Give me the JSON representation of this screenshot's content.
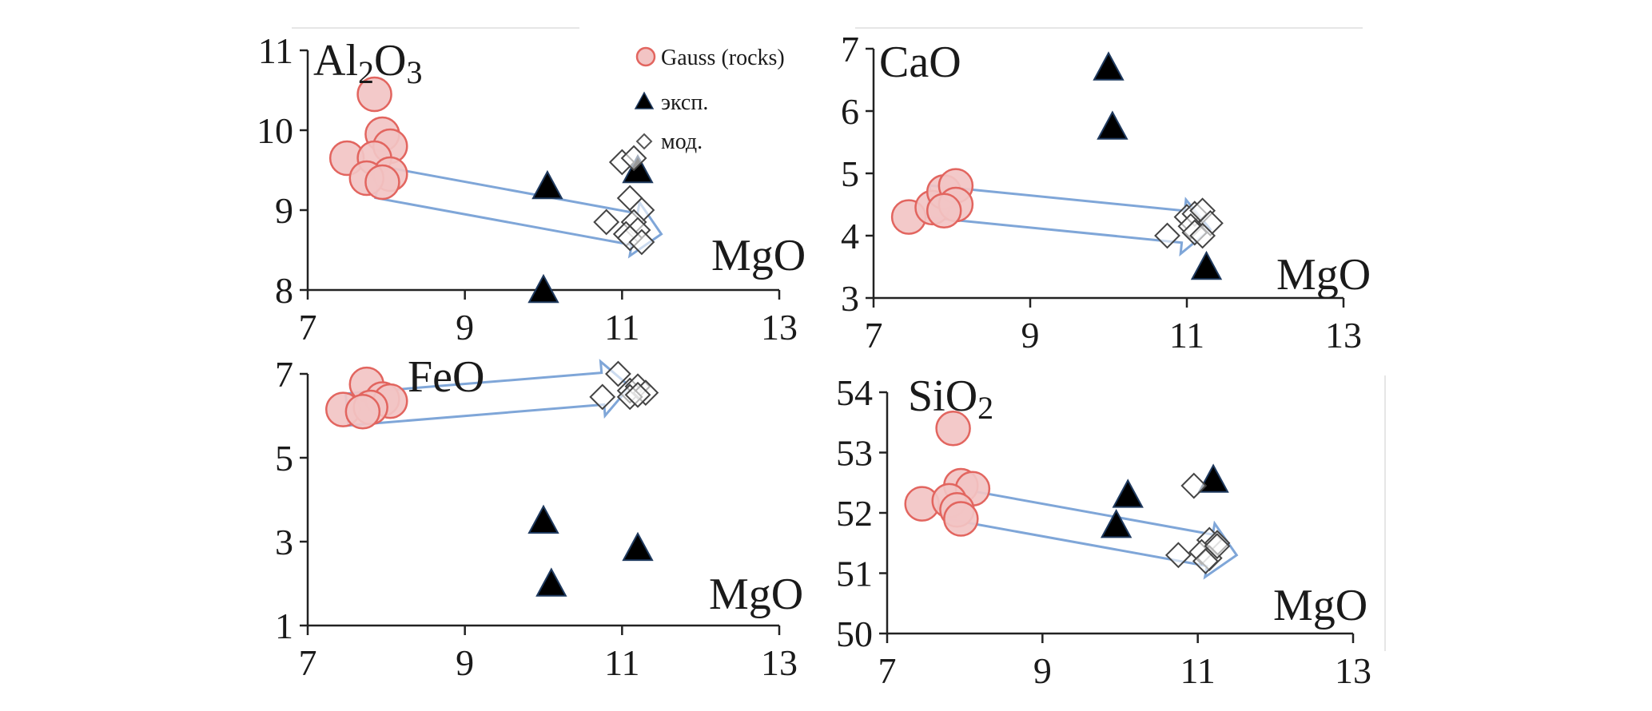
{
  "chart_data": [
    {
      "type": "scatter",
      "element": "Al",
      "ylabel_main": "Al",
      "ylabel_sub1": "2",
      "ylabel_mid": "O",
      "ylabel_sub2": "3",
      "xlabel": "MgO",
      "xlim": [
        7,
        13
      ],
      "ylim": [
        8,
        11
      ],
      "xticks": [
        "7",
        "9",
        "11",
        "13"
      ],
      "yticks": [
        "8",
        "9",
        "10",
        "11"
      ],
      "arrow": {
        "from": [
          7.9,
          9.35
        ],
        "to": [
          11.5,
          8.7
        ]
      },
      "series": [
        {
          "name": "Gauss (rocks)",
          "marker": "circle",
          "points": [
            [
              7.5,
              9.65
            ],
            [
              7.85,
              10.45
            ],
            [
              7.95,
              9.95
            ],
            [
              8.05,
              9.8
            ],
            [
              7.85,
              9.65
            ],
            [
              8.05,
              9.45
            ],
            [
              7.75,
              9.4
            ],
            [
              7.95,
              9.35
            ]
          ]
        },
        {
          "name": "эксп.",
          "marker": "triangle",
          "points": [
            [
              10.05,
              9.3
            ],
            [
              11.2,
              9.5
            ],
            [
              10.0,
              8.0
            ]
          ]
        },
        {
          "name": "мод.",
          "marker": "diamond",
          "points": [
            [
              10.8,
              8.85
            ],
            [
              11.0,
              9.6
            ],
            [
              11.15,
              9.65
            ],
            [
              11.1,
              9.15
            ],
            [
              11.25,
              9.0
            ],
            [
              11.15,
              8.85
            ],
            [
              11.2,
              8.75
            ],
            [
              11.05,
              8.7
            ],
            [
              11.1,
              8.65
            ],
            [
              11.25,
              8.6
            ]
          ]
        }
      ],
      "legend": {
        "items": [
          "Gauss (rocks)",
          "эксп.",
          "мод."
        ]
      }
    },
    {
      "type": "scatter",
      "ylabel_main": "CaO",
      "xlabel": "MgO",
      "xlim": [
        7,
        13
      ],
      "ylim": [
        3,
        7
      ],
      "xticks": [
        "7",
        "9",
        "11",
        "13"
      ],
      "yticks": [
        "3",
        "4",
        "5",
        "6",
        "7"
      ],
      "arrow": {
        "from": [
          7.7,
          4.55
        ],
        "to": [
          11.3,
          4.1
        ]
      },
      "series": [
        {
          "name": "Gauss (rocks)",
          "marker": "circle",
          "points": [
            [
              7.45,
              4.3
            ],
            [
              7.75,
              4.45
            ],
            [
              7.9,
              4.7
            ],
            [
              8.05,
              4.8
            ],
            [
              8.05,
              4.5
            ],
            [
              7.9,
              4.4
            ]
          ]
        },
        {
          "name": "эксп.",
          "marker": "triangle",
          "points": [
            [
              10.0,
              6.7
            ],
            [
              10.05,
              5.75
            ],
            [
              11.25,
              3.5
            ]
          ]
        },
        {
          "name": "мод.",
          "marker": "diamond",
          "points": [
            [
              10.75,
              4.0
            ],
            [
              11.0,
              4.3
            ],
            [
              11.1,
              4.35
            ],
            [
              11.2,
              4.4
            ],
            [
              11.3,
              4.2
            ],
            [
              11.05,
              4.15
            ],
            [
              11.1,
              4.05
            ],
            [
              11.2,
              4.0
            ]
          ]
        }
      ]
    },
    {
      "type": "scatter",
      "ylabel_main": "FeO",
      "xlabel": "MgO",
      "xlim": [
        7,
        13
      ],
      "ylim": [
        1,
        7
      ],
      "xticks": [
        "7",
        "9",
        "11",
        "13"
      ],
      "yticks": [
        "1",
        "3",
        "5",
        "7"
      ],
      "arrow": {
        "from": [
          7.5,
          6.15
        ],
        "to": [
          11.1,
          6.7
        ]
      },
      "series": [
        {
          "name": "Gauss (rocks)",
          "marker": "circle",
          "points": [
            [
              7.45,
              6.15
            ],
            [
              7.75,
              6.75
            ],
            [
              7.95,
              6.4
            ],
            [
              8.05,
              6.35
            ],
            [
              7.8,
              6.2
            ],
            [
              7.7,
              6.1
            ]
          ]
        },
        {
          "name": "эксп.",
          "marker": "triangle",
          "points": [
            [
              10.0,
              3.5
            ],
            [
              10.1,
              2.0
            ],
            [
              11.2,
              2.85
            ]
          ]
        },
        {
          "name": "мод.",
          "marker": "diamond",
          "points": [
            [
              10.75,
              6.45
            ],
            [
              10.95,
              7.0
            ],
            [
              11.1,
              6.6
            ],
            [
              11.2,
              6.7
            ],
            [
              11.3,
              6.55
            ],
            [
              11.1,
              6.45
            ],
            [
              11.2,
              6.5
            ]
          ]
        }
      ]
    },
    {
      "type": "scatter",
      "ylabel_main": "SiO",
      "ylabel_sub": "2",
      "xlabel": "MgO",
      "xlim": [
        7,
        13
      ],
      "ylim": [
        50,
        54
      ],
      "xticks": [
        "7",
        "9",
        "11",
        "13"
      ],
      "yticks": [
        "50",
        "51",
        "52",
        "53",
        "54"
      ],
      "arrow": {
        "from": [
          7.85,
          52.15
        ],
        "to": [
          11.5,
          51.3
        ]
      },
      "series": [
        {
          "name": "Gauss (rocks)",
          "marker": "circle",
          "points": [
            [
              7.45,
              52.15
            ],
            [
              7.85,
              53.4
            ],
            [
              7.95,
              52.45
            ],
            [
              8.1,
              52.4
            ],
            [
              7.8,
              52.2
            ],
            [
              7.9,
              52.05
            ],
            [
              7.95,
              51.9
            ]
          ]
        },
        {
          "name": "эксп.",
          "marker": "triangle",
          "points": [
            [
              10.1,
              52.3
            ],
            [
              9.95,
              51.8
            ],
            [
              11.2,
              52.55
            ]
          ]
        },
        {
          "name": "мод.",
          "marker": "diamond",
          "points": [
            [
              10.75,
              51.3
            ],
            [
              10.95,
              52.45
            ],
            [
              11.15,
              51.55
            ],
            [
              11.25,
              51.5
            ],
            [
              11.05,
              51.35
            ],
            [
              11.15,
              51.25
            ],
            [
              11.25,
              51.45
            ],
            [
              11.1,
              51.2
            ]
          ]
        }
      ]
    }
  ]
}
